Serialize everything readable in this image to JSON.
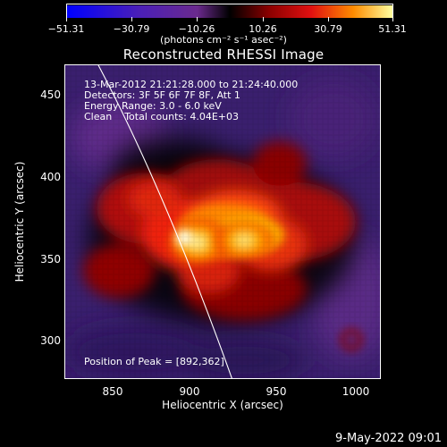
{
  "colorbar": {
    "ticks": [
      "−51.31",
      "−30.79",
      "−10.26",
      "10.26",
      "30.79",
      "51.31"
    ],
    "unit_label": "(photons cm⁻² s⁻¹ asec⁻²)"
  },
  "title": "Reconstructed RHESSI Image",
  "info": {
    "time_range": "13-Mar-2012 21:21:28.000 to 21:24:40.000",
    "detectors": "Detectors: 3F 5F 6F 7F 8F, Att 1",
    "energy": "Energy Range: 3.0 - 6.0 keV",
    "clean": "Clean    Total counts: 4.04E+03"
  },
  "peak_text": "Position of Peak = [892,362]",
  "axes": {
    "xlabel": "Heliocentric X (arcsec)",
    "ylabel": "Heliocentric Y (arcsec)",
    "xticks": [
      "850",
      "900",
      "950",
      "1000"
    ],
    "yticks": [
      "300",
      "350",
      "400",
      "450"
    ]
  },
  "footer_date": "9-May-2022 09:01",
  "colors": {
    "background": "#000000",
    "limb_line": "#ffffff",
    "map_background": "#3a1f6e"
  }
}
